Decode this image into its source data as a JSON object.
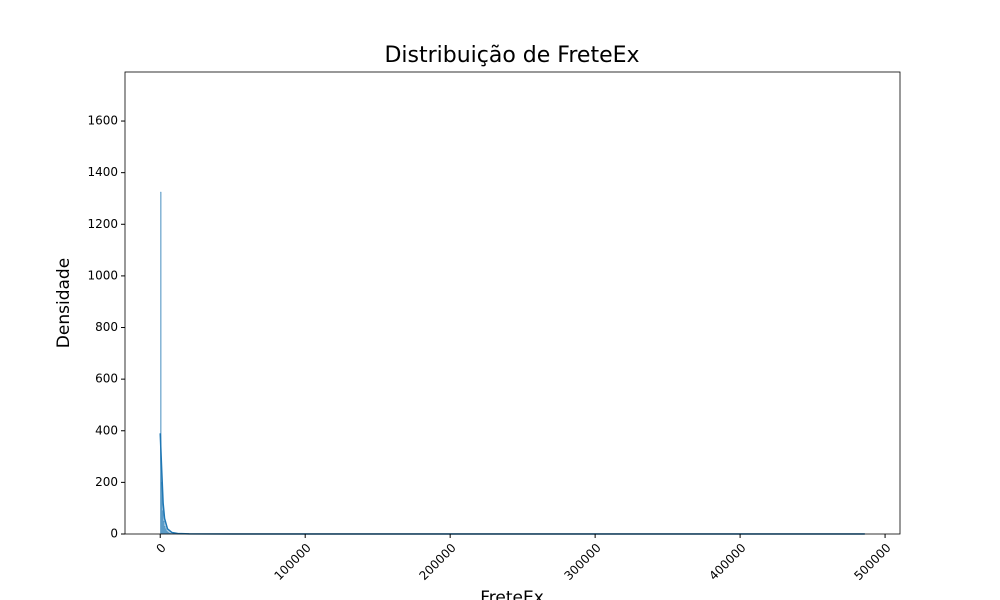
{
  "chart_data": {
    "type": "histogram",
    "title": "Distribuição de FreteEx",
    "x_label": "FreteEx",
    "y_label": "Densidade",
    "bins": [
      0,
      700,
      1400,
      2100,
      2800,
      3500,
      4200,
      4900,
      5600,
      6300,
      7000,
      486000
    ],
    "counts": [
      1325,
      200,
      90,
      50,
      30,
      20,
      12,
      8,
      5,
      3,
      2
    ],
    "color": "#1f77b4",
    "kde": {
      "x": [
        0,
        1000,
        2000,
        3000,
        5000,
        8000,
        12000,
        20000,
        50000,
        486000
      ],
      "y": [
        390,
        250,
        120,
        60,
        20,
        6,
        2,
        0.5,
        0.2,
        0.1
      ]
    },
    "xlim": [
      -24300,
      510300
    ],
    "ylim": [
      0,
      1790
    ],
    "xticks": [
      0,
      100000,
      200000,
      300000,
      400000,
      500000
    ],
    "yticks": [
      0,
      200,
      400,
      600,
      800,
      1000,
      1200,
      1400,
      1600
    ]
  }
}
